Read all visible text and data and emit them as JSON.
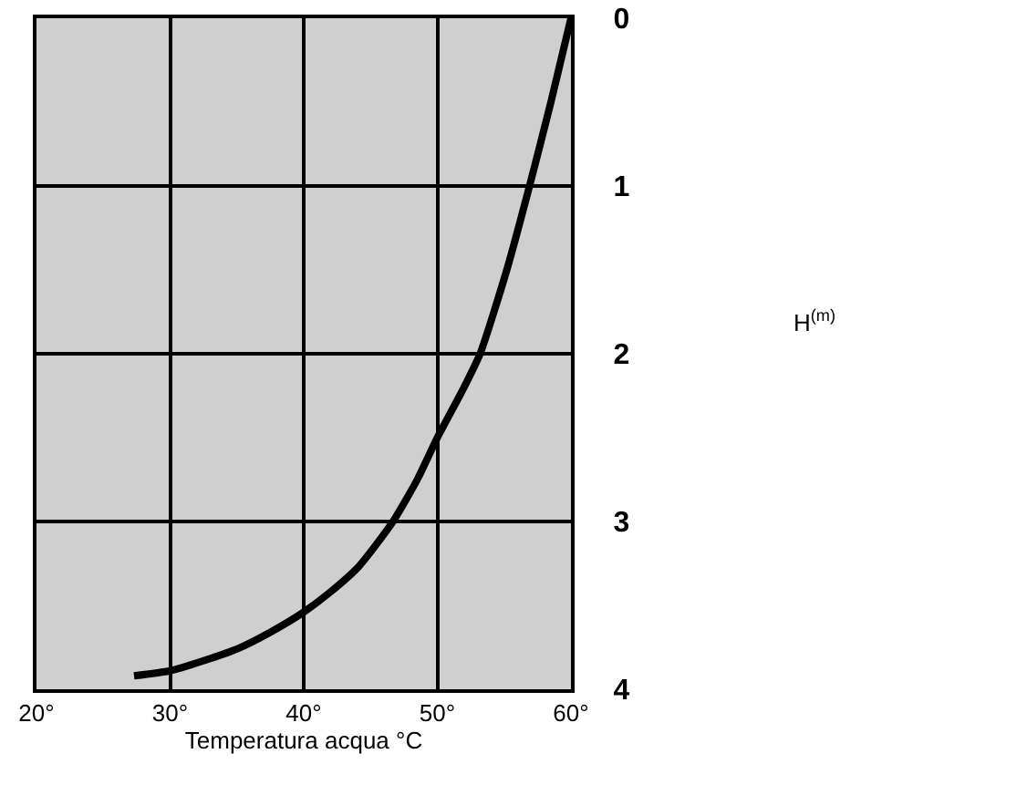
{
  "chart_data": {
    "type": "line",
    "xlabel": "Temperatura acqua °C",
    "annotations": [
      "H$^{(m)}$"
    ],
    "series": [
      {
        "color": "#000000",
        "x": [
          27.3,
          30,
          32.5,
          35,
          37.5,
          40,
          42,
          44.1,
          46.6,
          48.5,
          50,
          52,
          53.2,
          55.2,
          56.9,
          58.5,
          60
        ],
        "values": [
          3.92,
          3.89,
          3.83,
          3.76,
          3.66,
          3.54,
          3.42,
          3.27,
          3.01,
          2.75,
          2.5,
          2.2,
          2.0,
          1.5,
          1.0,
          0.5,
          0
        ]
      }
    ],
    "xlim": [
      20,
      60
    ],
    "xticks": [
      {
        "value": 20,
        "label": "20°"
      },
      {
        "value": 30,
        "label": "30°"
      },
      {
        "value": 40,
        "label": "40°"
      },
      {
        "value": 50,
        "label": "50°"
      },
      {
        "value": 60,
        "label": "60°"
      }
    ],
    "ylim": [
      4,
      0
    ],
    "yticks": [
      0,
      1,
      2,
      3,
      4
    ],
    "grid": true,
    "marker": "none",
    "line_style": "solid"
  }
}
